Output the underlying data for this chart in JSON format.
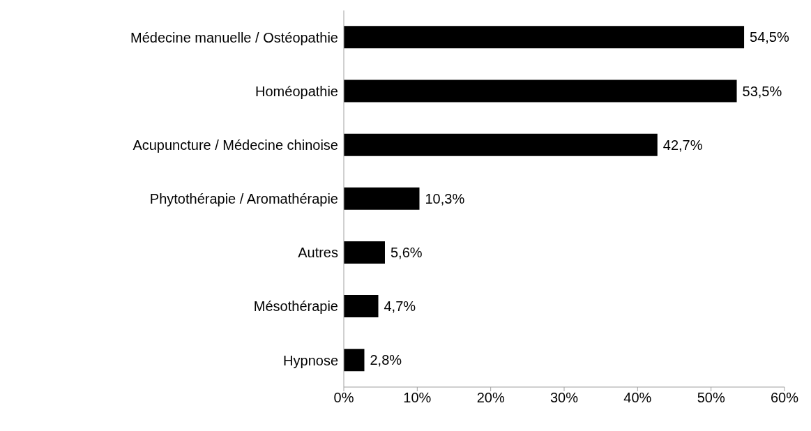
{
  "chart_data": {
    "type": "bar",
    "orientation": "horizontal",
    "categories": [
      "Médecine manuelle / Ostéopathie",
      "Homéopathie",
      "Acupuncture / Médecine chinoise",
      "Phytothérapie / Aromathérapie",
      "Autres",
      "Mésothérapie",
      "Hypnose"
    ],
    "values": [
      54.5,
      53.5,
      42.7,
      10.3,
      5.6,
      4.7,
      2.8
    ],
    "value_labels": [
      "54,5%",
      "53,5%",
      "42,7%",
      "10,3%",
      "5,6%",
      "4,7%",
      "2,8%"
    ],
    "color": "#000000",
    "xlim": [
      0,
      60
    ],
    "xticks": [
      {
        "value": 0,
        "label": "0%"
      },
      {
        "value": 10,
        "label": "10%"
      },
      {
        "value": 20,
        "label": "20%"
      },
      {
        "value": 30,
        "label": "30%"
      },
      {
        "value": 40,
        "label": "40%"
      },
      {
        "value": 50,
        "label": "50%"
      },
      {
        "value": 60,
        "label": "60%"
      }
    ],
    "grid": false,
    "legend": false
  }
}
